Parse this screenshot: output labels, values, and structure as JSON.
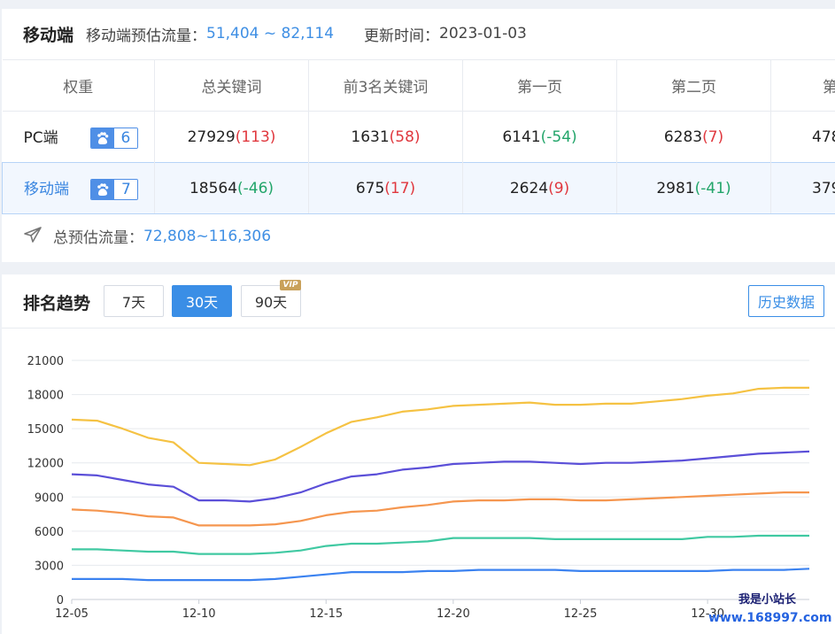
{
  "top": {
    "title": "移动端",
    "traffic_label": "移动端预估流量：",
    "traffic_value": "51,404 ~ 82,114",
    "update_label": "更新时间：",
    "update_value": "2023-01-03",
    "columns": [
      "权重",
      "总关键词",
      "前3名关键词",
      "第一页",
      "第二页",
      "第"
    ],
    "rows": [
      {
        "label": "PC端",
        "weight": "6",
        "selected": false,
        "cells": [
          {
            "value": "27929",
            "delta": "(113)",
            "sign": "pos"
          },
          {
            "value": "1631",
            "delta": "(58)",
            "sign": "pos"
          },
          {
            "value": "6141",
            "delta": "(-54)",
            "sign": "neg"
          },
          {
            "value": "6283",
            "delta": "(7)",
            "sign": "pos"
          },
          {
            "value": "478",
            "delta": "",
            "sign": "pos"
          }
        ]
      },
      {
        "label": "移动端",
        "weight": "7",
        "selected": true,
        "cells": [
          {
            "value": "18564",
            "delta": "(-46)",
            "sign": "neg"
          },
          {
            "value": "675",
            "delta": "(17)",
            "sign": "pos"
          },
          {
            "value": "2624",
            "delta": "(9)",
            "sign": "pos"
          },
          {
            "value": "2981",
            "delta": "(-41)",
            "sign": "neg"
          },
          {
            "value": "379",
            "delta": "",
            "sign": "pos"
          }
        ]
      }
    ],
    "total_label": "总预估流量：",
    "total_value": "72,808~116,306"
  },
  "trend": {
    "title": "排名趋势",
    "ranges": [
      "7天",
      "30天",
      "90天"
    ],
    "active_range": "30天",
    "vip_label": "VIP",
    "history_button": "历史数据"
  },
  "chart_data": {
    "type": "line",
    "x": [
      "12-05",
      "12-06",
      "12-07",
      "12-08",
      "12-09",
      "12-10",
      "12-11",
      "12-12",
      "12-13",
      "12-14",
      "12-15",
      "12-16",
      "12-17",
      "12-18",
      "12-19",
      "12-20",
      "12-21",
      "12-22",
      "12-23",
      "12-24",
      "12-25",
      "12-26",
      "12-27",
      "12-28",
      "12-29",
      "12-30",
      "12-31",
      "01-01",
      "01-02",
      "01-03"
    ],
    "xticks": [
      "12-05",
      "12-10",
      "12-15",
      "12-20",
      "12-25",
      "12-30"
    ],
    "ylim": [
      0,
      21000
    ],
    "yticks": [
      0,
      3000,
      6000,
      9000,
      12000,
      15000,
      18000,
      21000
    ],
    "grid": true,
    "series": [
      {
        "color": "#f5c243",
        "values": [
          15800,
          15700,
          15000,
          14200,
          13800,
          12000,
          11900,
          11800,
          12300,
          13400,
          14600,
          15600,
          16000,
          16500,
          16700,
          17000,
          17100,
          17200,
          17300,
          17100,
          17100,
          17200,
          17200,
          17400,
          17600,
          17900,
          18100,
          18500,
          18600,
          18600
        ]
      },
      {
        "color": "#5b4fd8",
        "values": [
          11000,
          10900,
          10500,
          10100,
          9900,
          8700,
          8700,
          8600,
          8900,
          9400,
          10200,
          10800,
          11000,
          11400,
          11600,
          11900,
          12000,
          12100,
          12100,
          12000,
          11900,
          12000,
          12000,
          12100,
          12200,
          12400,
          12600,
          12800,
          12900,
          13000
        ]
      },
      {
        "color": "#f5964f",
        "values": [
          7900,
          7800,
          7600,
          7300,
          7200,
          6500,
          6500,
          6500,
          6600,
          6900,
          7400,
          7700,
          7800,
          8100,
          8300,
          8600,
          8700,
          8700,
          8800,
          8800,
          8700,
          8700,
          8800,
          8900,
          9000,
          9100,
          9200,
          9300,
          9400,
          9400
        ]
      },
      {
        "color": "#40c9a2",
        "values": [
          4400,
          4400,
          4300,
          4200,
          4200,
          4000,
          4000,
          4000,
          4100,
          4300,
          4700,
          4900,
          4900,
          5000,
          5100,
          5400,
          5400,
          5400,
          5400,
          5300,
          5300,
          5300,
          5300,
          5300,
          5300,
          5500,
          5500,
          5600,
          5600,
          5600
        ]
      },
      {
        "color": "#3b82f0",
        "values": [
          1800,
          1800,
          1800,
          1700,
          1700,
          1700,
          1700,
          1700,
          1800,
          2000,
          2200,
          2400,
          2400,
          2400,
          2500,
          2500,
          2600,
          2600,
          2600,
          2600,
          2500,
          2500,
          2500,
          2500,
          2500,
          2500,
          2600,
          2600,
          2600,
          2700
        ]
      }
    ]
  },
  "watermark": {
    "line1": "我是小站长",
    "line2": "www.168997.com"
  }
}
